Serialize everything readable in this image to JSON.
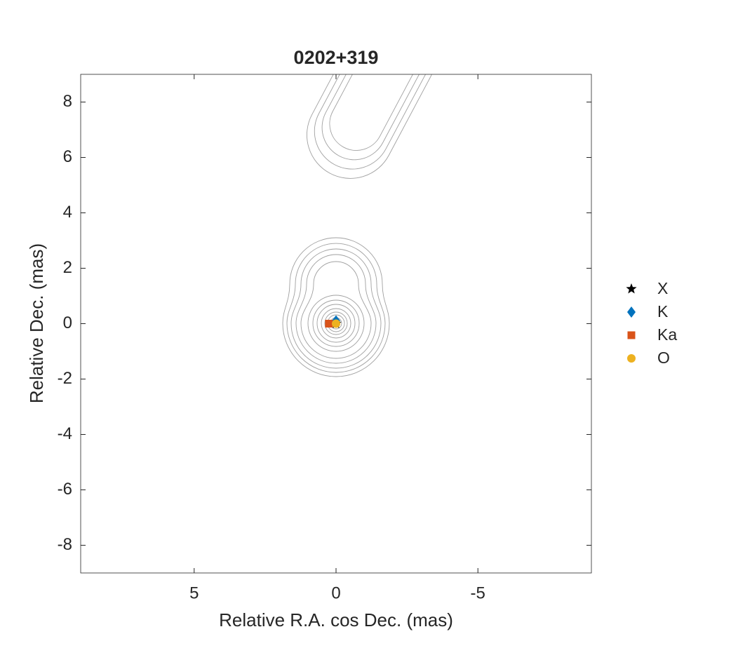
{
  "chart_data": {
    "type": "scatter",
    "title": "0202+319",
    "x_label": "Relative R.A. cos Dec. (mas)",
    "y_label": "Relative Dec. (mas)",
    "xlim": [
      9,
      -9
    ],
    "ylim": [
      -9,
      9
    ],
    "xticks": [
      5,
      0,
      -5
    ],
    "yticks": [
      -8,
      -6,
      -4,
      -2,
      0,
      2,
      4,
      6,
      8
    ],
    "legend_position": "outside-right",
    "series": [
      {
        "name": "X",
        "color": "#000000",
        "marker": "star",
        "x": [
          0
        ],
        "values": [
          0
        ]
      },
      {
        "name": "K",
        "color": "#0072bd",
        "marker": "diamond",
        "x": [
          0
        ],
        "values": [
          0.1
        ]
      },
      {
        "name": "Ka",
        "color": "#d95319",
        "marker": "square",
        "x": [
          0.25
        ],
        "values": [
          0
        ]
      },
      {
        "name": "O",
        "color": "#edb120",
        "marker": "circle",
        "x": [
          0
        ],
        "values": [
          0
        ]
      }
    ]
  }
}
